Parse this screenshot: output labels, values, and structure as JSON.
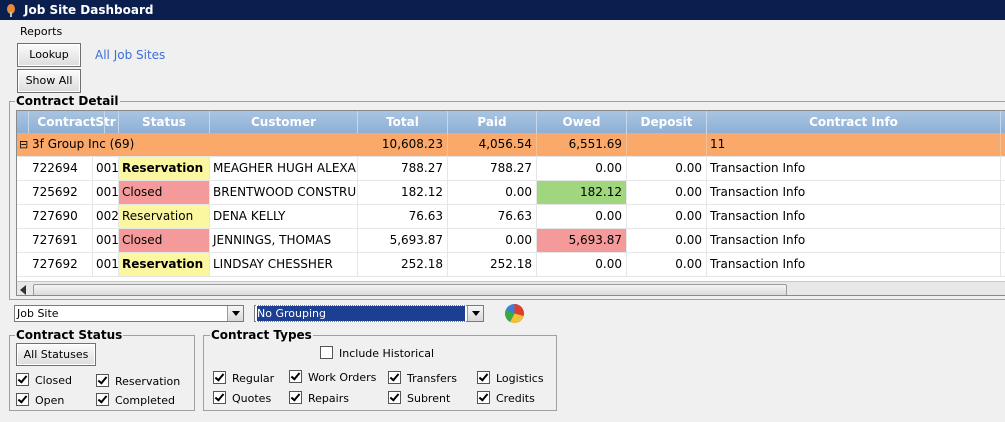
{
  "window": {
    "title": "Job Site Dashboard"
  },
  "menu": {
    "reports": "Reports"
  },
  "toolbar": {
    "lookup": "Lookup",
    "all_job_sites": "All Job Sites",
    "show_all": "Show All"
  },
  "contract_detail": {
    "title": "Contract Detail",
    "columns": [
      "Contract",
      "Str",
      "Status",
      "Customer",
      "Total",
      "Paid",
      "Owed",
      "Deposit",
      "Contract Info"
    ],
    "group_row": {
      "toggle": "⊟",
      "name": "3f Group Inc (69)",
      "total": "10,608.23",
      "paid": "4,056.54",
      "owed": "6,551.69",
      "deposit": "",
      "info": "11"
    },
    "rows": [
      {
        "contract": "722694",
        "str": "001",
        "status": "Reservation",
        "customer": "MEAGHER HUGH ALEXA",
        "total": "788.27",
        "paid": "788.27",
        "owed": "0.00",
        "deposit": "0.00",
        "info": "Transaction Info"
      },
      {
        "contract": "725692",
        "str": "001",
        "status": "Closed",
        "customer": "BRENTWOOD CONSTRU",
        "total": "182.12",
        "paid": "0.00",
        "owed": "182.12",
        "deposit": "0.00",
        "info": "Transaction Info"
      },
      {
        "contract": "727690",
        "str": "002",
        "status": "Reservation",
        "customer": "DENA KELLY",
        "total": "76.63",
        "paid": "76.63",
        "owed": "0.00",
        "deposit": "0.00",
        "info": "Transaction Info"
      },
      {
        "contract": "727691",
        "str": "001",
        "status": "Closed",
        "customer": "JENNINGS, THOMAS",
        "total": "5,693.87",
        "paid": "0.00",
        "owed": "5,693.87",
        "deposit": "0.00",
        "info": "Transaction Info"
      },
      {
        "contract": "727692",
        "str": "001",
        "status": "Reservation",
        "customer": "LINDSAY CHESSHER",
        "total": "252.18",
        "paid": "252.18",
        "owed": "0.00",
        "deposit": "0.00",
        "info": "Transaction Info"
      }
    ]
  },
  "filters": {
    "job_site": "Job Site",
    "grouping": "No Grouping"
  },
  "contract_status": {
    "title": "Contract Status",
    "all_statuses": "All Statuses",
    "closed": "Closed",
    "reservation": "Reservation",
    "open": "Open",
    "completed": "Completed"
  },
  "contract_types": {
    "title": "Contract Types",
    "include_historical": "Include Historical",
    "regular": "Regular",
    "work_orders": "Work Orders",
    "transfers": "Transfers",
    "logistics": "Logistics",
    "quotes": "Quotes",
    "repairs": "Repairs",
    "subrent": "Subrent",
    "credits": "Credits"
  },
  "colors": {
    "title_bar": "#0b1f4f",
    "header": "#8eb0d6",
    "group_row": "#fba96a",
    "reservation": "#fbf7a0",
    "closed": "#f59a9a",
    "owed_green": "#9fd67e"
  }
}
